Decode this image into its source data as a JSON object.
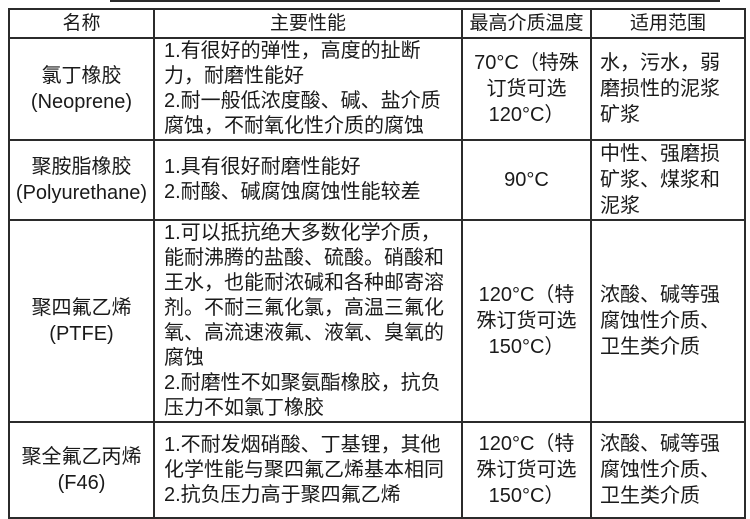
{
  "page": {
    "background": "#ffffff",
    "border_color": "#2b2b2b",
    "text_color": "#1a1a1a"
  },
  "table": {
    "headers": [
      "名称",
      "主要性能",
      "最高介质温度",
      "适用范围"
    ],
    "rows": [
      {
        "name": "氯丁橡胶",
        "name_en": "(Neoprene)",
        "main": [
          "1.有很好的弹性，高度的扯断力，耐磨性能好",
          "2.耐一般低浓度酸、碱、盐介质腐蚀，不耐氧化性介质的腐蚀"
        ],
        "temp": "70°C（特殊订货可选120°C）",
        "range": "水，污水，弱磨损性的泥浆矿浆"
      },
      {
        "name": "聚胺脂橡胶",
        "name_en": "(Polyurethane)",
        "main": [
          "1.具有很好耐磨性能好",
          "2.耐酸、碱腐蚀腐蚀性能较差"
        ],
        "temp": "90°C",
        "range": "中性、强磨损矿浆、煤浆和泥浆"
      },
      {
        "name": "聚四氟乙烯",
        "name_en": "(PTFE)",
        "main": [
          "1.可以抵抗绝大多数化学介质，能耐沸腾的盐酸、硫酸。硝酸和王水，也能耐浓碱和各种邮寄溶剂。不耐三氟化氯，高温三氟化氧、高流速液氟、液氧、臭氧的腐蚀",
          "2.耐磨性不如聚氨酯橡胶，抗负压力不如氯丁橡胶"
        ],
        "temp": "120°C（特殊订货可选150°C）",
        "range": "浓酸、碱等强腐蚀性介质、卫生类介质"
      },
      {
        "name": "聚全氟乙丙烯",
        "name_en": "(F46)",
        "main": [
          "1.不耐发烟硝酸、丁基锂，其他化学性能与聚四氟乙烯基本相同",
          "2.抗负压力高于聚四氟乙烯"
        ],
        "temp": "120°C（特殊订货可选150°C）",
        "range": "浓酸、碱等强腐蚀性介质、卫生类介质"
      }
    ]
  }
}
